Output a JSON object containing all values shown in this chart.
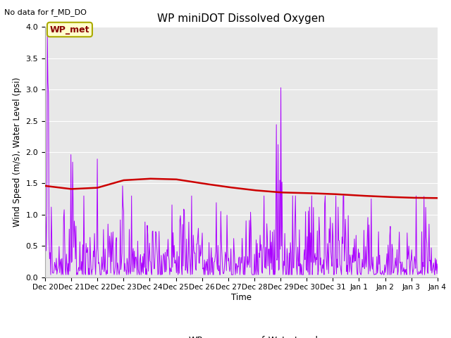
{
  "title": "WP miniDOT Dissolved Oxygen",
  "top_left_text": "No data for f_MD_DO",
  "ylabel": "Wind Speed (m/s), Water Level (psi)",
  "xlabel": "Time",
  "ylim": [
    0.0,
    4.0
  ],
  "yticks": [
    0.0,
    0.5,
    1.0,
    1.5,
    2.0,
    2.5,
    3.0,
    3.5,
    4.0
  ],
  "bg_color": "#e8e8e8",
  "wp_met_box": {
    "text": "WP_met",
    "facecolor": "#ffffcc",
    "edgecolor": "#aaaa00",
    "textcolor": "#880000"
  },
  "legend": {
    "WP_ws": {
      "color": "#aa00ff"
    },
    "f_WaterLevel": {
      "color": "#cc0000"
    }
  },
  "xtick_labels": [
    "Dec 20",
    "Dec 21",
    "Dec 22",
    "Dec 23",
    "Dec 24",
    "Dec 25",
    "Dec 26",
    "Dec 27",
    "Dec 28",
    "Dec 29",
    "Dec 30",
    "Dec 31",
    "Jan 1",
    "Jan 2",
    "Jan 3",
    "Jan 4"
  ],
  "wl_ctrl_x": [
    0,
    1,
    2,
    3,
    4,
    5,
    6,
    7,
    8,
    9,
    10,
    11,
    12,
    13,
    14,
    15
  ],
  "wl_ctrl_y": [
    1.46,
    1.41,
    1.43,
    1.55,
    1.575,
    1.565,
    1.5,
    1.44,
    1.39,
    1.355,
    1.345,
    1.33,
    1.305,
    1.285,
    1.27,
    1.265
  ]
}
